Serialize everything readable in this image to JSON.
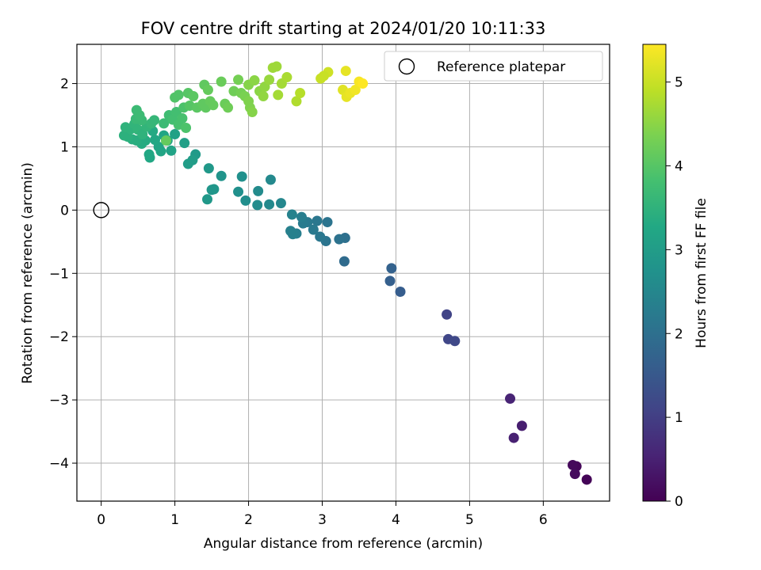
{
  "chart_data": {
    "type": "scatter",
    "title": "FOV centre drift starting at 2024/01/20 10:11:33",
    "xlabel": "Angular distance from reference (arcmin)",
    "ylabel": "Rotation from reference (arcmin)",
    "xlim": [
      -0.33,
      6.9
    ],
    "ylim": [
      -4.6,
      2.62
    ],
    "xticks": [
      0,
      1,
      2,
      3,
      4,
      5,
      6
    ],
    "yticks": [
      2,
      1,
      0,
      -1,
      -2,
      -3,
      -4
    ],
    "xtick_labels": [
      "0",
      "1",
      "2",
      "3",
      "4",
      "5",
      "6"
    ],
    "ytick_labels": [
      "2",
      "1",
      "0",
      "−1",
      "−2",
      "−3",
      "−4"
    ],
    "grid": true,
    "legend": {
      "placement": "top-right",
      "entries": [
        {
          "label": "Reference platepar",
          "marker": "open-circle"
        }
      ]
    },
    "reference_point": {
      "x": 0,
      "y": 0
    },
    "colorbar": {
      "label": "Hours from first FF file",
      "colormap": "viridis",
      "range": [
        0,
        5.45
      ],
      "ticks": [
        0,
        1,
        2,
        3,
        4,
        5
      ],
      "tick_labels": [
        "0",
        "1",
        "2",
        "3",
        "4",
        "5"
      ]
    },
    "points": [
      {
        "x": 6.59,
        "y": -4.26,
        "h": 0.05
      },
      {
        "x": 6.45,
        "y": -4.05,
        "h": 0.08
      },
      {
        "x": 6.4,
        "y": -4.03,
        "h": 0.12
      },
      {
        "x": 6.43,
        "y": -4.17,
        "h": 0.15
      },
      {
        "x": 5.71,
        "y": -3.41,
        "h": 0.45
      },
      {
        "x": 5.6,
        "y": -3.6,
        "h": 0.5
      },
      {
        "x": 5.55,
        "y": -2.98,
        "h": 0.55
      },
      {
        "x": 4.69,
        "y": -1.65,
        "h": 1.1
      },
      {
        "x": 4.71,
        "y": -2.04,
        "h": 1.15
      },
      {
        "x": 4.8,
        "y": -2.07,
        "h": 1.2
      },
      {
        "x": 4.06,
        "y": -1.29,
        "h": 1.6
      },
      {
        "x": 3.92,
        "y": -1.12,
        "h": 1.65
      },
      {
        "x": 3.94,
        "y": -0.92,
        "h": 1.7
      },
      {
        "x": 3.3,
        "y": -0.81,
        "h": 1.9
      },
      {
        "x": 3.31,
        "y": -0.44,
        "h": 2.0
      },
      {
        "x": 3.23,
        "y": -0.46,
        "h": 2.05
      },
      {
        "x": 3.05,
        "y": -0.49,
        "h": 2.1
      },
      {
        "x": 2.97,
        "y": -0.42,
        "h": 2.15
      },
      {
        "x": 3.07,
        "y": -0.19,
        "h": 2.1
      },
      {
        "x": 2.88,
        "y": -0.31,
        "h": 2.2
      },
      {
        "x": 2.93,
        "y": -0.17,
        "h": 2.15
      },
      {
        "x": 2.8,
        "y": -0.19,
        "h": 2.2
      },
      {
        "x": 2.74,
        "y": -0.21,
        "h": 2.25
      },
      {
        "x": 2.72,
        "y": -0.11,
        "h": 2.3
      },
      {
        "x": 2.65,
        "y": -0.37,
        "h": 2.3
      },
      {
        "x": 2.6,
        "y": -0.38,
        "h": 2.35
      },
      {
        "x": 2.57,
        "y": -0.33,
        "h": 2.35
      },
      {
        "x": 2.59,
        "y": -0.07,
        "h": 2.4
      },
      {
        "x": 2.44,
        "y": 0.11,
        "h": 2.5
      },
      {
        "x": 2.28,
        "y": 0.09,
        "h": 2.55
      },
      {
        "x": 2.12,
        "y": 0.08,
        "h": 2.6
      },
      {
        "x": 2.13,
        "y": 0.3,
        "h": 2.6
      },
      {
        "x": 2.3,
        "y": 0.48,
        "h": 2.55
      },
      {
        "x": 1.96,
        "y": 0.15,
        "h": 2.65
      },
      {
        "x": 1.86,
        "y": 0.29,
        "h": 2.7
      },
      {
        "x": 1.91,
        "y": 0.53,
        "h": 2.7
      },
      {
        "x": 1.63,
        "y": 0.54,
        "h": 2.8
      },
      {
        "x": 1.53,
        "y": 0.33,
        "h": 2.85
      },
      {
        "x": 1.5,
        "y": 0.32,
        "h": 2.85
      },
      {
        "x": 1.44,
        "y": 0.17,
        "h": 2.9
      },
      {
        "x": 1.46,
        "y": 0.66,
        "h": 2.9
      },
      {
        "x": 1.28,
        "y": 0.88,
        "h": 2.95
      },
      {
        "x": 1.24,
        "y": 0.79,
        "h": 3.0
      },
      {
        "x": 1.18,
        "y": 0.73,
        "h": 3.0
      },
      {
        "x": 1.13,
        "y": 1.06,
        "h": 3.05
      },
      {
        "x": 1.0,
        "y": 1.2,
        "h": 3.1
      },
      {
        "x": 0.95,
        "y": 0.94,
        "h": 3.15
      },
      {
        "x": 0.81,
        "y": 0.93,
        "h": 3.2
      },
      {
        "x": 0.66,
        "y": 0.83,
        "h": 3.25
      },
      {
        "x": 0.65,
        "y": 0.88,
        "h": 3.25
      },
      {
        "x": 0.78,
        "y": 1.0,
        "h": 3.2
      },
      {
        "x": 0.73,
        "y": 1.11,
        "h": 3.25
      },
      {
        "x": 0.85,
        "y": 1.18,
        "h": 3.2
      },
      {
        "x": 0.9,
        "y": 1.1,
        "h": 3.2
      },
      {
        "x": 0.7,
        "y": 1.25,
        "h": 3.3
      },
      {
        "x": 0.6,
        "y": 1.1,
        "h": 3.35
      },
      {
        "x": 0.55,
        "y": 1.05,
        "h": 3.35
      },
      {
        "x": 0.48,
        "y": 1.1,
        "h": 3.4
      },
      {
        "x": 0.42,
        "y": 1.12,
        "h": 3.4
      },
      {
        "x": 0.36,
        "y": 1.16,
        "h": 3.45
      },
      {
        "x": 0.31,
        "y": 1.18,
        "h": 3.45
      },
      {
        "x": 0.33,
        "y": 1.31,
        "h": 3.5
      },
      {
        "x": 0.4,
        "y": 1.28,
        "h": 3.5
      },
      {
        "x": 0.45,
        "y": 1.36,
        "h": 3.55
      },
      {
        "x": 0.5,
        "y": 1.27,
        "h": 3.55
      },
      {
        "x": 0.56,
        "y": 1.2,
        "h": 3.5
      },
      {
        "x": 0.62,
        "y": 1.32,
        "h": 3.55
      },
      {
        "x": 0.68,
        "y": 1.37,
        "h": 3.6
      },
      {
        "x": 0.72,
        "y": 1.42,
        "h": 3.6
      },
      {
        "x": 0.55,
        "y": 1.42,
        "h": 3.65
      },
      {
        "x": 0.47,
        "y": 1.44,
        "h": 3.65
      },
      {
        "x": 0.48,
        "y": 1.58,
        "h": 3.7
      },
      {
        "x": 0.52,
        "y": 1.5,
        "h": 3.7
      },
      {
        "x": 0.85,
        "y": 1.37,
        "h": 3.7
      },
      {
        "x": 0.88,
        "y": 1.1,
        "h": 4.15
      },
      {
        "x": 0.92,
        "y": 1.5,
        "h": 3.75
      },
      {
        "x": 0.97,
        "y": 1.43,
        "h": 3.8
      },
      {
        "x": 1.02,
        "y": 1.55,
        "h": 3.8
      },
      {
        "x": 1.05,
        "y": 1.35,
        "h": 3.85
      },
      {
        "x": 1.1,
        "y": 1.45,
        "h": 3.85
      },
      {
        "x": 1.15,
        "y": 1.3,
        "h": 3.9
      },
      {
        "x": 1.0,
        "y": 1.78,
        "h": 3.95
      },
      {
        "x": 1.05,
        "y": 1.82,
        "h": 3.95
      },
      {
        "x": 1.12,
        "y": 1.62,
        "h": 3.9
      },
      {
        "x": 1.18,
        "y": 1.85,
        "h": 4.0
      },
      {
        "x": 1.2,
        "y": 1.65,
        "h": 4.0
      },
      {
        "x": 1.25,
        "y": 1.8,
        "h": 4.05
      },
      {
        "x": 1.3,
        "y": 1.62,
        "h": 4.05
      },
      {
        "x": 1.38,
        "y": 1.68,
        "h": 4.1
      },
      {
        "x": 1.4,
        "y": 1.98,
        "h": 4.1
      },
      {
        "x": 1.42,
        "y": 1.62,
        "h": 4.1
      },
      {
        "x": 1.45,
        "y": 1.9,
        "h": 4.15
      },
      {
        "x": 1.48,
        "y": 1.72,
        "h": 4.15
      },
      {
        "x": 1.52,
        "y": 1.66,
        "h": 4.15
      },
      {
        "x": 1.63,
        "y": 2.03,
        "h": 4.2
      },
      {
        "x": 1.68,
        "y": 1.68,
        "h": 4.2
      },
      {
        "x": 1.72,
        "y": 1.62,
        "h": 4.25
      },
      {
        "x": 1.8,
        "y": 1.88,
        "h": 4.25
      },
      {
        "x": 1.86,
        "y": 2.06,
        "h": 4.3
      },
      {
        "x": 1.9,
        "y": 1.85,
        "h": 4.3
      },
      {
        "x": 1.95,
        "y": 1.8,
        "h": 4.35
      },
      {
        "x": 2.0,
        "y": 1.72,
        "h": 4.4
      },
      {
        "x": 2.02,
        "y": 1.62,
        "h": 4.4
      },
      {
        "x": 2.05,
        "y": 1.55,
        "h": 4.45
      },
      {
        "x": 2.0,
        "y": 1.98,
        "h": 4.45
      },
      {
        "x": 2.08,
        "y": 2.05,
        "h": 4.5
      },
      {
        "x": 2.15,
        "y": 1.88,
        "h": 4.5
      },
      {
        "x": 2.2,
        "y": 1.8,
        "h": 4.55
      },
      {
        "x": 2.22,
        "y": 1.95,
        "h": 4.55
      },
      {
        "x": 2.28,
        "y": 2.06,
        "h": 4.6
      },
      {
        "x": 2.33,
        "y": 2.25,
        "h": 4.65
      },
      {
        "x": 2.38,
        "y": 2.27,
        "h": 4.65
      },
      {
        "x": 2.4,
        "y": 1.82,
        "h": 4.7
      },
      {
        "x": 2.45,
        "y": 2.0,
        "h": 4.7
      },
      {
        "x": 2.52,
        "y": 2.1,
        "h": 4.75
      },
      {
        "x": 2.65,
        "y": 1.72,
        "h": 4.8
      },
      {
        "x": 2.7,
        "y": 1.85,
        "h": 4.85
      },
      {
        "x": 2.98,
        "y": 2.08,
        "h": 5.0
      },
      {
        "x": 3.08,
        "y": 2.18,
        "h": 5.05
      },
      {
        "x": 3.02,
        "y": 2.12,
        "h": 5.0
      },
      {
        "x": 3.28,
        "y": 1.9,
        "h": 5.2
      },
      {
        "x": 3.33,
        "y": 1.79,
        "h": 5.25
      },
      {
        "x": 3.32,
        "y": 2.2,
        "h": 5.25
      },
      {
        "x": 3.38,
        "y": 1.85,
        "h": 5.3
      },
      {
        "x": 3.45,
        "y": 1.9,
        "h": 5.35
      },
      {
        "x": 3.5,
        "y": 2.03,
        "h": 5.4
      },
      {
        "x": 3.55,
        "y": 2.0,
        "h": 5.45
      }
    ]
  }
}
